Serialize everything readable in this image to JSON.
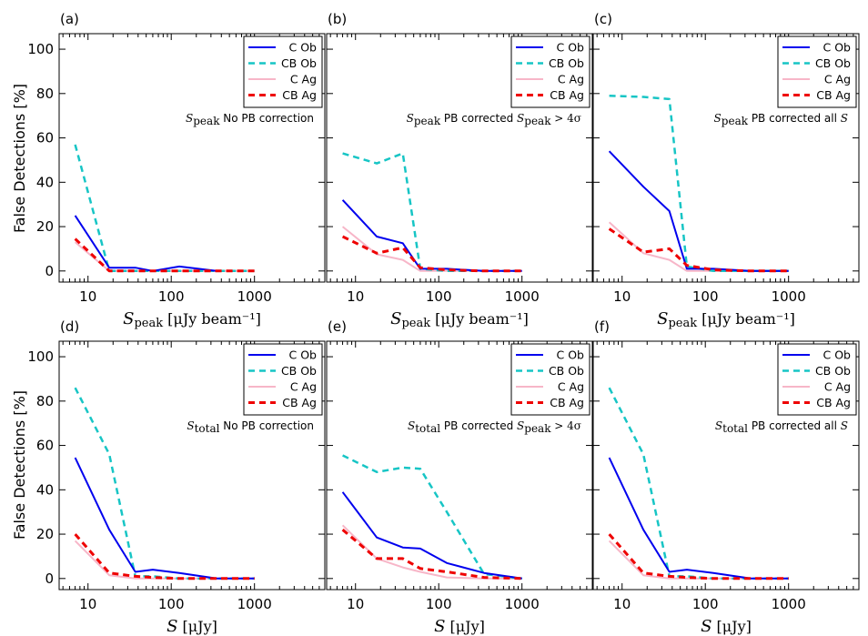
{
  "figure": {
    "ylabel": "False Detections [%]",
    "colors": {
      "C Ob": "#0000ee",
      "CB Ob": "#17c5c5",
      "C Ag": "#f7b6c8",
      "CB Ag": "#ee0000"
    },
    "x_ticks": [
      10,
      100,
      1000
    ],
    "x_tick_labels": [
      "10",
      "100",
      "1000"
    ],
    "y_ticks": [
      0,
      20,
      40,
      60,
      80,
      100
    ],
    "y_tick_labels": [
      "0",
      "20",
      "40",
      "60",
      "80",
      "100"
    ]
  },
  "chart_data": [
    {
      "type": "line",
      "panel": "(a)",
      "annotation": {
        "math": "S",
        "sub": "peak",
        "text": " No PB correction"
      },
      "xlabel": {
        "math": "S",
        "sub": "peak",
        "unit": " [μJy beam⁻¹]"
      },
      "xlim": [
        4.5,
        7000
      ],
      "ylim": [
        -5,
        107
      ],
      "xscale": "log",
      "series": [
        {
          "name": "C Ob",
          "x": [
            7,
            18,
            37,
            60,
            125,
            350
          ],
          "y": [
            25,
            1.5,
            1.5,
            0,
            2,
            0
          ]
        },
        {
          "name": "CB Ob",
          "x": [
            7,
            18,
            37,
            70,
            150,
            350,
            1000
          ],
          "y": [
            57,
            0,
            0,
            0,
            0,
            0,
            0
          ]
        },
        {
          "name": "C Ag",
          "x": [
            7,
            18,
            37,
            70,
            150,
            350,
            1000
          ],
          "y": [
            13,
            0,
            0,
            0,
            0,
            0,
            0
          ]
        },
        {
          "name": "CB Ag",
          "x": [
            7,
            18,
            37,
            70,
            150,
            350,
            1000
          ],
          "y": [
            14.5,
            0,
            0,
            0,
            0,
            0,
            0
          ]
        }
      ]
    },
    {
      "type": "line",
      "panel": "(b)",
      "annotation": {
        "math": "S",
        "sub": "peak",
        "text": " PB corrected S",
        "sub2": "peak",
        "text2": " > 4σ"
      },
      "xlabel": {
        "math": "S",
        "sub": "peak",
        "unit": " [μJy beam⁻¹]"
      },
      "xlim": [
        4.5,
        7000
      ],
      "ylim": [
        -5,
        107
      ],
      "xscale": "log",
      "series": [
        {
          "name": "C Ob",
          "x": [
            7,
            18,
            37,
            60,
            125,
            350,
            1000
          ],
          "y": [
            32,
            15.5,
            12.5,
            1,
            1,
            0,
            0
          ]
        },
        {
          "name": "CB Ob",
          "x": [
            7,
            18,
            37,
            60,
            125,
            350,
            1000
          ],
          "y": [
            53,
            48.5,
            53,
            1,
            0,
            0,
            0
          ]
        },
        {
          "name": "C Ag",
          "x": [
            7,
            18,
            37,
            60,
            125,
            350,
            1000
          ],
          "y": [
            20,
            7.5,
            5,
            0,
            0,
            0,
            0
          ]
        },
        {
          "name": "CB Ag",
          "x": [
            7,
            18,
            37,
            60,
            125,
            350,
            1000
          ],
          "y": [
            15.5,
            8,
            10.5,
            1.5,
            0.5,
            0,
            0
          ]
        }
      ]
    },
    {
      "type": "line",
      "panel": "(c)",
      "annotation": {
        "math": "S",
        "sub": "peak",
        "text": " PB corrected all S"
      },
      "xlabel": {
        "math": "S",
        "sub": "peak",
        "unit": " [μJy beam⁻¹]"
      },
      "xlim": [
        4.5,
        7000
      ],
      "ylim": [
        -5,
        107
      ],
      "xscale": "log",
      "series": [
        {
          "name": "C Ob",
          "x": [
            7,
            18,
            37,
            60,
            125,
            350,
            1000
          ],
          "y": [
            54,
            38,
            27,
            1,
            1,
            0,
            0
          ]
        },
        {
          "name": "CB Ob",
          "x": [
            7,
            18,
            37,
            60,
            125,
            350,
            1000
          ],
          "y": [
            79,
            78.5,
            77.5,
            2,
            0,
            0,
            0
          ]
        },
        {
          "name": "C Ag",
          "x": [
            7,
            18,
            37,
            60,
            125,
            350,
            1000
          ],
          "y": [
            22,
            8,
            5,
            0,
            0,
            0,
            0
          ]
        },
        {
          "name": "CB Ag",
          "x": [
            7,
            18,
            37,
            60,
            125,
            350,
            1000
          ],
          "y": [
            19,
            8.5,
            10,
            2.5,
            0.5,
            0,
            0
          ]
        }
      ]
    },
    {
      "type": "line",
      "panel": "(d)",
      "annotation": {
        "math": "S",
        "sub": "total",
        "text": " No PB correction"
      },
      "xlabel": {
        "math": "S",
        "sub": "",
        "unit": " [μJy]"
      },
      "xlim": [
        4.5,
        7000
      ],
      "ylim": [
        -5,
        107
      ],
      "xscale": "log",
      "series": [
        {
          "name": "C Ob",
          "x": [
            7,
            18,
            37,
            60,
            125,
            350,
            1000
          ],
          "y": [
            54.5,
            22,
            3,
            4,
            2.5,
            0,
            0
          ]
        },
        {
          "name": "CB Ob",
          "x": [
            7,
            18,
            37,
            60,
            125,
            350,
            1000
          ],
          "y": [
            86,
            56,
            1,
            1,
            0,
            0,
            0
          ]
        },
        {
          "name": "C Ag",
          "x": [
            7,
            18,
            37,
            60,
            125,
            350,
            1000
          ],
          "y": [
            17,
            1.5,
            0,
            0,
            0,
            0,
            0
          ]
        },
        {
          "name": "CB Ag",
          "x": [
            7,
            18,
            37,
            60,
            125,
            350,
            1000
          ],
          "y": [
            20,
            2.5,
            1,
            0.5,
            0,
            0,
            0
          ]
        }
      ]
    },
    {
      "type": "line",
      "panel": "(e)",
      "annotation": {
        "math": "S",
        "sub": "total",
        "text": " PB corrected S",
        "sub2": "peak",
        "text2": " > 4σ"
      },
      "xlabel": {
        "math": "S",
        "sub": "",
        "unit": " [μJy]"
      },
      "xlim": [
        4.5,
        7000
      ],
      "ylim": [
        -5,
        107
      ],
      "xscale": "log",
      "series": [
        {
          "name": "C Ob",
          "x": [
            7,
            18,
            37,
            60,
            125,
            350,
            1000
          ],
          "y": [
            39,
            18.5,
            14,
            13.5,
            7,
            2.5,
            0
          ]
        },
        {
          "name": "CB Ob",
          "x": [
            7,
            18,
            37,
            60,
            125,
            350,
            1000
          ],
          "y": [
            55.5,
            48,
            50,
            49.5,
            30,
            2,
            0
          ]
        },
        {
          "name": "C Ag",
          "x": [
            7,
            18,
            37,
            60,
            125,
            350,
            1000
          ],
          "y": [
            24,
            9,
            5,
            3,
            0.5,
            0,
            0
          ]
        },
        {
          "name": "CB Ag",
          "x": [
            7,
            18,
            37,
            60,
            125,
            350,
            1000
          ],
          "y": [
            22,
            9,
            9,
            4.5,
            3,
            0.5,
            0
          ]
        }
      ]
    },
    {
      "type": "line",
      "panel": "(f)",
      "annotation": {
        "math": "S",
        "sub": "total",
        "text": " PB corrected all S"
      },
      "xlabel": {
        "math": "S",
        "sub": "",
        "unit": " [μJy]"
      },
      "xlim": [
        4.5,
        7000
      ],
      "ylim": [
        -5,
        107
      ],
      "xscale": "log",
      "series": [
        {
          "name": "C Ob",
          "x": [
            7,
            18,
            37,
            60,
            125,
            350,
            1000
          ],
          "y": [
            54.5,
            22,
            3,
            4,
            2.5,
            0,
            0
          ]
        },
        {
          "name": "CB Ob",
          "x": [
            7,
            18,
            37,
            60,
            125,
            350,
            1000
          ],
          "y": [
            86,
            56,
            1,
            1,
            0,
            0,
            0
          ]
        },
        {
          "name": "C Ag",
          "x": [
            7,
            18,
            37,
            60,
            125,
            350,
            1000
          ],
          "y": [
            17,
            1.5,
            0,
            0,
            0,
            0,
            0
          ]
        },
        {
          "name": "CB Ag",
          "x": [
            7,
            18,
            37,
            60,
            125,
            350,
            1000
          ],
          "y": [
            20,
            2.5,
            1,
            0.5,
            0,
            0,
            0
          ]
        }
      ]
    }
  ]
}
